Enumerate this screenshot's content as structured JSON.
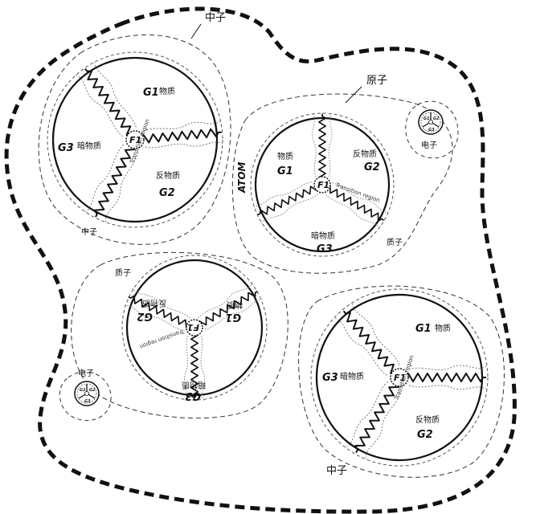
{
  "labels": {
    "neutron": "中子",
    "proton": "质子",
    "electron": "电子",
    "atom_cn": "原子",
    "atom_en": "ATOM",
    "matter": "物质",
    "antimatter": "反物质",
    "dark_matter": "暗物质",
    "transition": "Transition region",
    "g1": "G1",
    "g2": "G2",
    "g3": "G3",
    "f1": "F1"
  }
}
